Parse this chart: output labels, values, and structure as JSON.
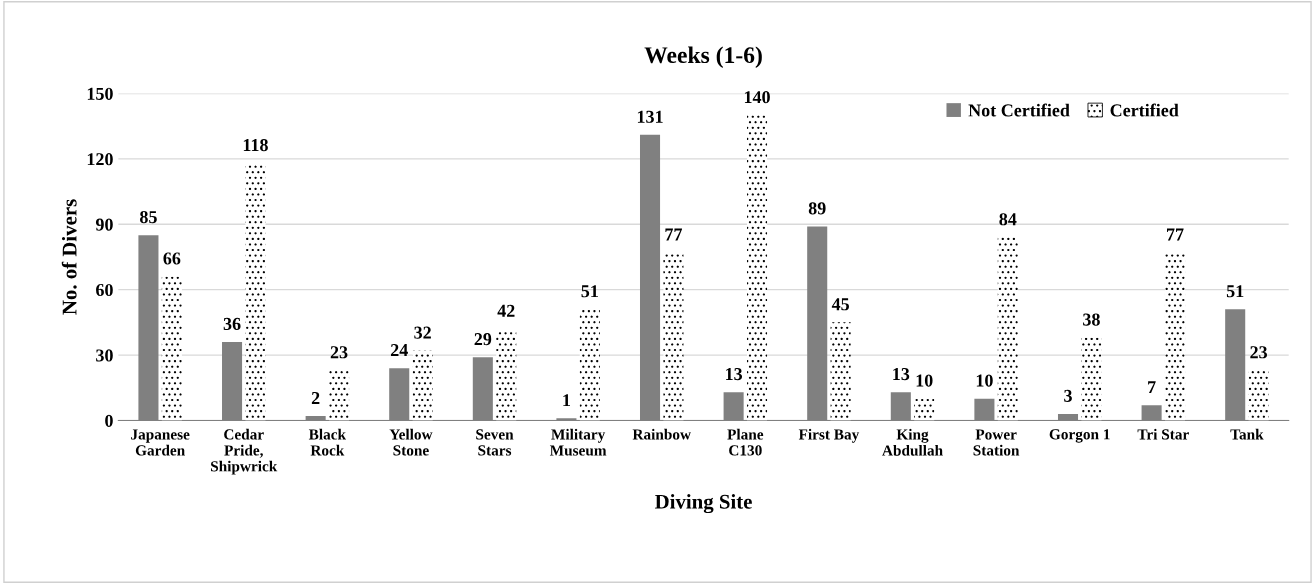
{
  "chart_data": {
    "type": "bar",
    "title": "Weeks (1-6)",
    "xlabel": "Diving Site",
    "ylabel": "No. of Divers",
    "categories": [
      "Japanese\nGarden",
      "Cedar\nPride,\nShipwrick",
      "Black\nRock",
      "Yellow\nStone",
      "Seven\nStars",
      "Military\nMuseum",
      "Rainbow",
      "Plane\nC130",
      "First Bay",
      "King\nAbdullah",
      "Power\nStation",
      "Gorgon 1",
      "Tri Star",
      "Tank"
    ],
    "series": [
      {
        "name": "Not Certified",
        "color": "#808080",
        "values": [
          85,
          36,
          2,
          24,
          29,
          1,
          131,
          13,
          89,
          13,
          10,
          3,
          7,
          51
        ]
      },
      {
        "name": "Certified",
        "color": "#ffffff",
        "values": [
          66,
          118,
          23,
          32,
          42,
          51,
          77,
          140,
          45,
          10,
          84,
          38,
          77,
          23
        ]
      }
    ],
    "ylim": [
      0,
      150
    ],
    "yticks": [
      0,
      30,
      60,
      90,
      120,
      150
    ],
    "grid": "y",
    "legend": "top right",
    "data_labels": true
  }
}
